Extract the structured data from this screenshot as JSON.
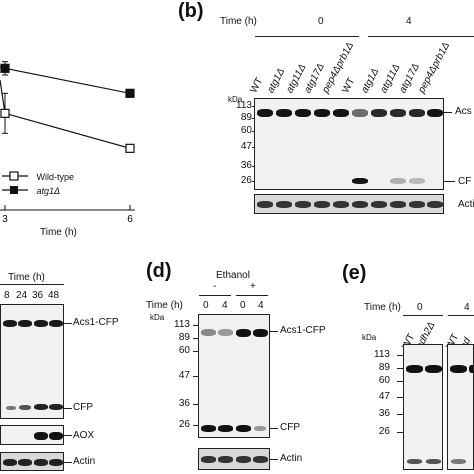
{
  "panel_a": {
    "chart_data": {
      "type": "line",
      "x": [
        0,
        3,
        6
      ],
      "xticks": [
        "3",
        "6"
      ],
      "xlabel": "Time (h)",
      "series": [
        {
          "name": "Wild-type",
          "marker": "open-square",
          "values": [
            null,
            58,
            37
          ],
          "color": "#111111"
        },
        {
          "name": "atg1Δ",
          "marker": "filled-square",
          "values": [
            null,
            85,
            70
          ],
          "color": "#111111"
        }
      ],
      "ylim": [
        0,
        120
      ]
    }
  },
  "panel_b": {
    "letter": "(b)",
    "time_label": "Time (h)",
    "time_groups": [
      "0",
      "4"
    ],
    "lanes": [
      "WT",
      "atg1Δ",
      "atg11Δ",
      "atg17Δ",
      "pep4Δprb1Δ",
      "WT",
      "atg1Δ",
      "atg11Δ",
      "atg17Δ",
      "pep4Δprb1Δ"
    ],
    "kda": "kDa",
    "markers": [
      "113",
      "89",
      "60",
      "47",
      "36",
      "26"
    ],
    "right_labels": [
      "Acs",
      "CF",
      "Acti"
    ]
  },
  "panel_c": {
    "time_label": "Time (h)",
    "times": [
      "8",
      "24",
      "36",
      "48"
    ],
    "right_labels": [
      "Acs1-CFP",
      "CFP",
      "AOX",
      "Actin"
    ]
  },
  "panel_d": {
    "letter": "(d)",
    "ethanol_label": "Ethanol",
    "ethanol_states": [
      "-",
      "+"
    ],
    "time_label": "Time (h)",
    "times": [
      "0",
      "4",
      "0",
      "4"
    ],
    "kda": "kDa",
    "markers": [
      "113",
      "89",
      "60",
      "47",
      "36",
      "26"
    ],
    "right_labels": [
      "Acs1-CFP",
      "CFP",
      "Actin"
    ]
  },
  "panel_e": {
    "letter": "(e)",
    "time_label": "Time (h)",
    "time_groups": [
      "0",
      "4"
    ],
    "lanes": [
      "WT",
      "adh2Δ",
      "WT",
      "ad"
    ],
    "kda": "kDa",
    "markers": [
      "113",
      "89",
      "60",
      "47",
      "36",
      "26"
    ]
  }
}
